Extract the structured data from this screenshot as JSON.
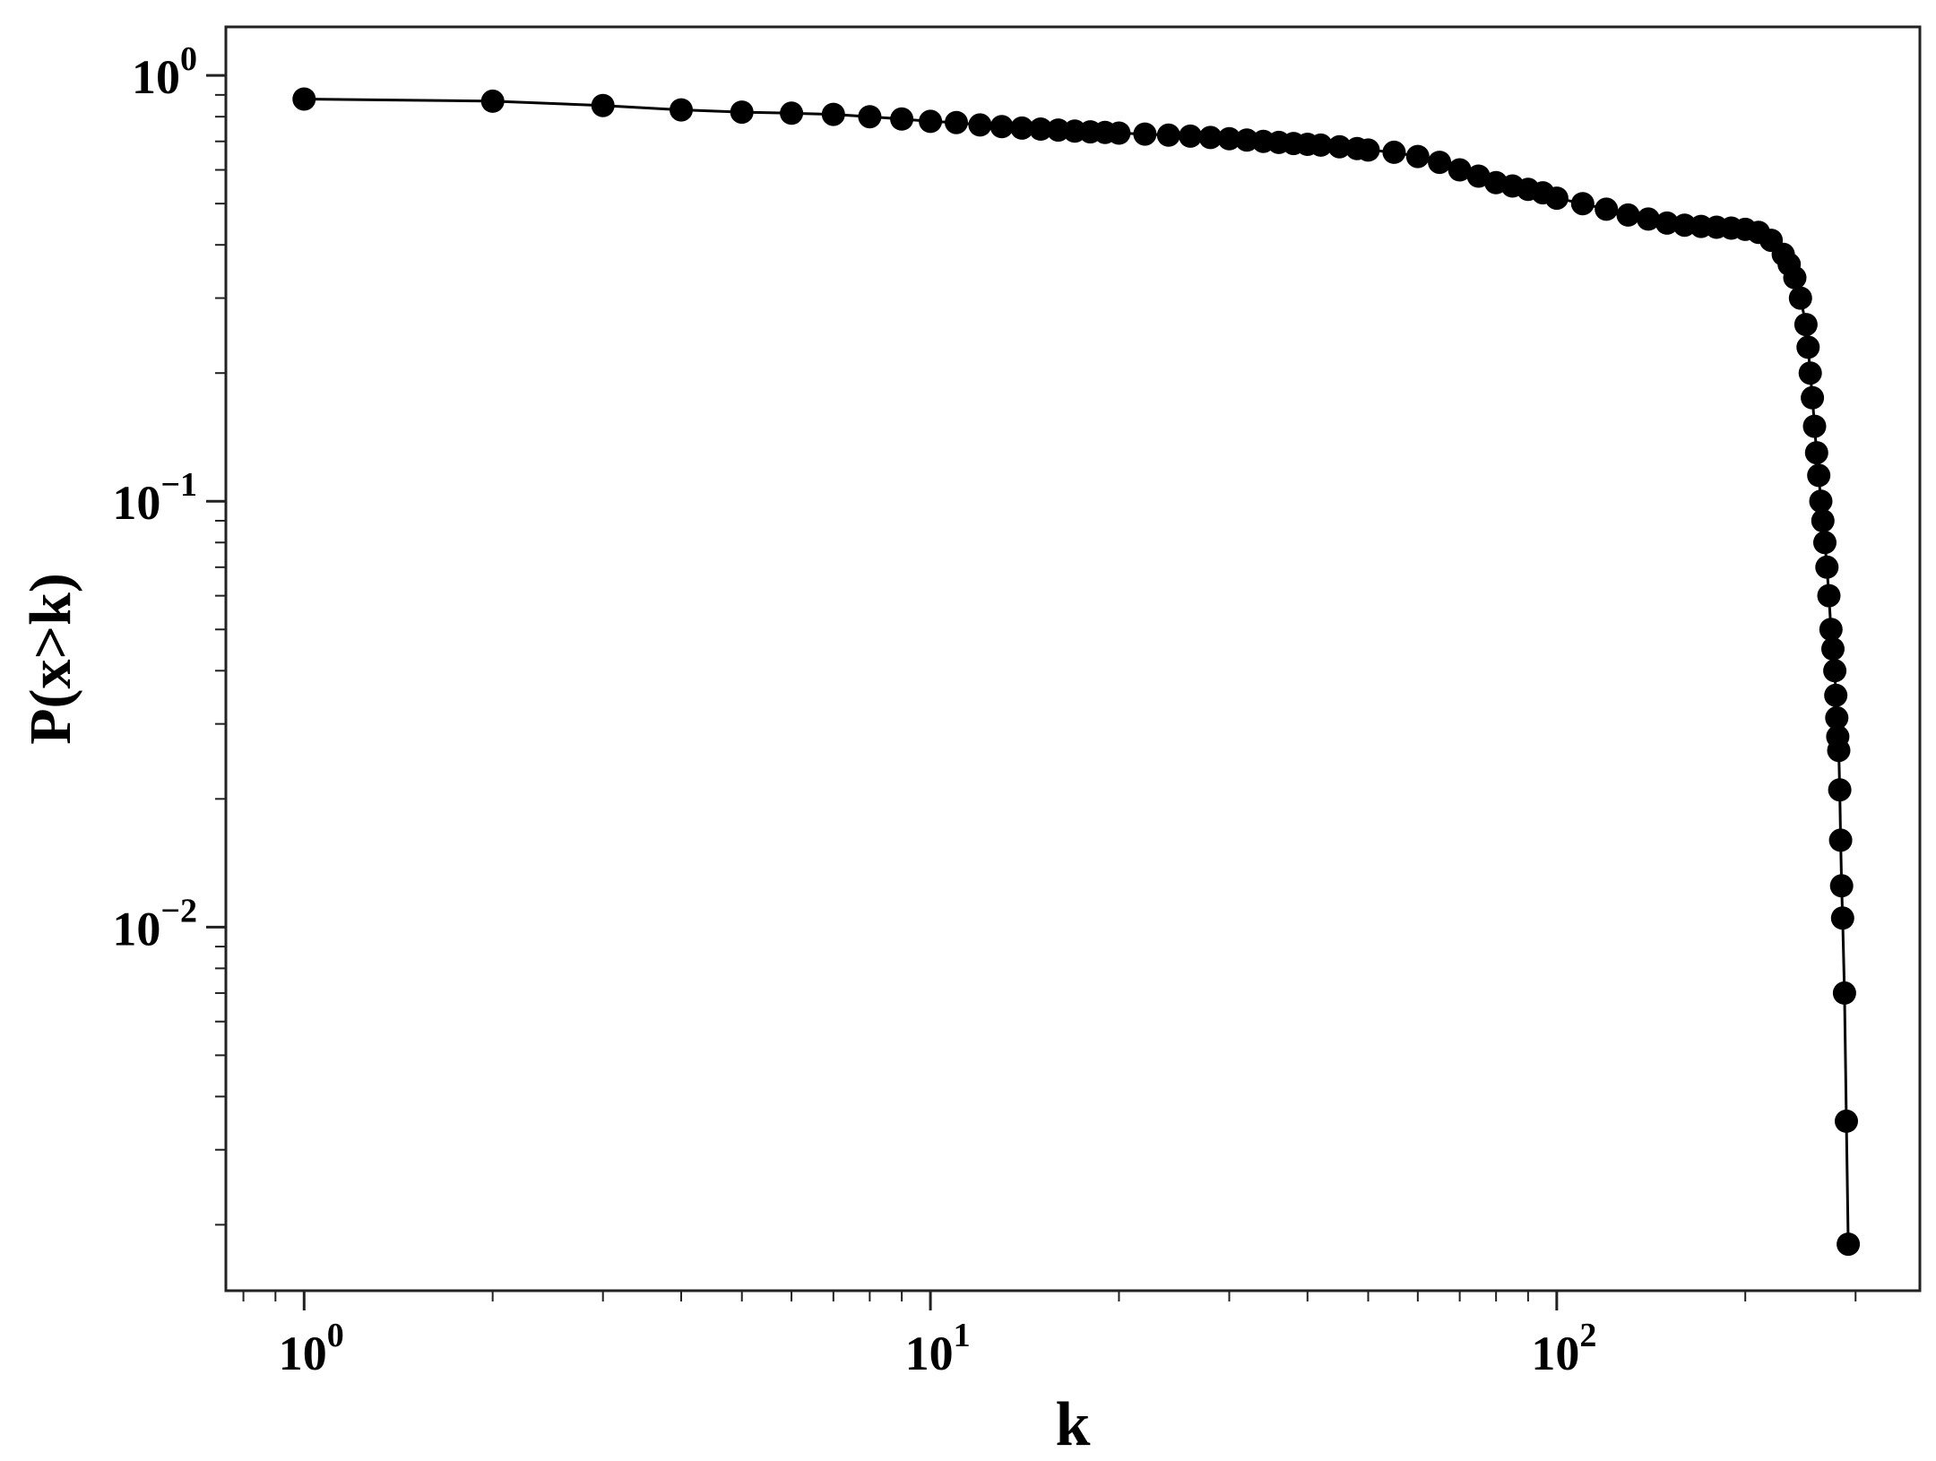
{
  "chart_data": {
    "type": "line",
    "title": "",
    "xlabel": "k",
    "ylabel": "P(x>k)",
    "xscale": "log",
    "yscale": "log",
    "xlim": [
      0.75,
      380
    ],
    "ylim": [
      0.0014,
      1.3
    ],
    "grid": false,
    "legend": "none",
    "marker": "circle",
    "color": "#000000",
    "x_ticks": [
      {
        "base": "10",
        "exp": "0",
        "value": 1
      },
      {
        "base": "10",
        "exp": "1",
        "value": 10
      },
      {
        "base": "10",
        "exp": "2",
        "value": 100
      }
    ],
    "y_ticks": [
      {
        "base": "10",
        "exp": "0",
        "value": 1
      },
      {
        "base": "10",
        "exp": "−1",
        "value": 0.1
      },
      {
        "base": "10",
        "exp": "−2",
        "value": 0.01
      }
    ],
    "series": [
      {
        "x": [
          1,
          2,
          3,
          4,
          5,
          6,
          7,
          8,
          9,
          10,
          11,
          12,
          13,
          14,
          15,
          16,
          17,
          18,
          19,
          20,
          22,
          24,
          26,
          28,
          30,
          32,
          34,
          36,
          38,
          40,
          42,
          45,
          48,
          50,
          55,
          60,
          65,
          70,
          75,
          80,
          85,
          90,
          95,
          100,
          110,
          120,
          130,
          140,
          150,
          160,
          170,
          180,
          190,
          200,
          210,
          220,
          230,
          235,
          240,
          245,
          250,
          252,
          254,
          256,
          258,
          260,
          262,
          264,
          266,
          268,
          270,
          272,
          274,
          276,
          278,
          279,
          280,
          281,
          282,
          283,
          284,
          285,
          286,
          288,
          290,
          292,
          294,
          296,
          297,
          298,
          299
        ],
        "y": [
          0.88,
          0.87,
          0.85,
          0.83,
          0.82,
          0.815,
          0.81,
          0.8,
          0.79,
          0.78,
          0.775,
          0.765,
          0.758,
          0.752,
          0.748,
          0.744,
          0.74,
          0.737,
          0.735,
          0.732,
          0.728,
          0.724,
          0.72,
          0.715,
          0.71,
          0.705,
          0.7,
          0.696,
          0.692,
          0.689,
          0.686,
          0.68,
          0.673,
          0.668,
          0.66,
          0.645,
          0.625,
          0.6,
          0.58,
          0.56,
          0.55,
          0.54,
          0.53,
          0.515,
          0.5,
          0.485,
          0.47,
          0.46,
          0.45,
          0.445,
          0.442,
          0.44,
          0.438,
          0.435,
          0.428,
          0.41,
          0.38,
          0.36,
          0.335,
          0.3,
          0.26,
          0.23,
          0.2,
          0.175,
          0.15,
          0.13,
          0.115,
          0.1,
          0.09,
          0.08,
          0.07,
          0.06,
          0.05,
          0.045,
          0.04,
          0.035,
          0.031,
          0.028,
          0.026,
          0.021,
          0.016,
          0.0125,
          0.0105,
          0.007,
          0.0035,
          0.0018,
          null,
          null,
          null,
          null,
          null
        ]
      }
    ]
  }
}
